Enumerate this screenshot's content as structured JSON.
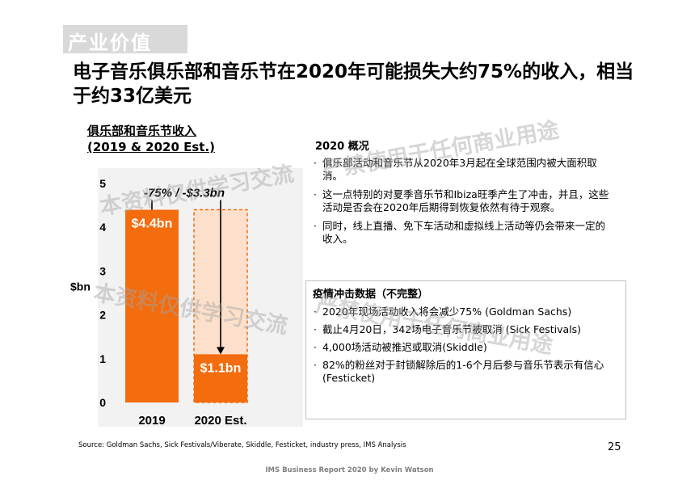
{
  "section_label": "产业价值",
  "headline": "电子音乐俱乐部和音乐节在2020年可能损失大约75%的收入，相当于约33亿美元",
  "chart_title": [
    "俱乐部和音乐节收入",
    "(2019 & 2020 Est.)"
  ],
  "overview_title": "2020 概况",
  "overview_bullets": [
    "俱乐部活动和音乐节从2020年3月起在全球范围内被大面积取消。",
    "这一点特别的对夏季音乐节和Ibiza旺季产生了冲击，并且，这些活动是否会在2020年后期得到恢复依然有待于观察。",
    "同时，线上直播、免下车活动和虚拟线上活动等仍会带来一定的收入。"
  ],
  "impact_title": "疫情冲击数据（不完整）",
  "impact_bullets": [
    "2020年现场活动收入将会减少75% (Goldman Sachs)",
    "截止4月20日，342场电子音乐节被取消 (Sick Festivals)",
    "4,000场活动被推迟或取消(Skiddle)",
    "82%的粉丝对于封锁解除后的1-6个月后参与音乐节表示有信心 (Festicket)"
  ],
  "source": "Source: Goldman Sachs, Sick Festivals/Viberate, Skiddle, Festicket, industry press, IMS Analysis",
  "page_number": "25",
  "footer": "IMS Business Report 2020 by Kevin Watson",
  "watermarks": [
    "本资料仅供学习交流",
    "严禁使用于任何商业用途"
  ],
  "colors": {
    "accent": "#f36c0e",
    "ghost_fill": "#fde0cb",
    "tag_bg": "#d9d9d9"
  },
  "chart_data": {
    "type": "bar",
    "categories": [
      "2019",
      "2020 Est."
    ],
    "values": [
      4.4,
      1.1
    ],
    "data_labels": [
      "$4.4bn",
      "$1.1bn"
    ],
    "ylabel": "$bn",
    "ylim": [
      0,
      5
    ],
    "yticks": [
      0,
      1,
      2,
      3,
      4,
      5
    ],
    "ghost_value": 4.4,
    "annotation": "-75% / -$3.3bn",
    "grid": false
  }
}
